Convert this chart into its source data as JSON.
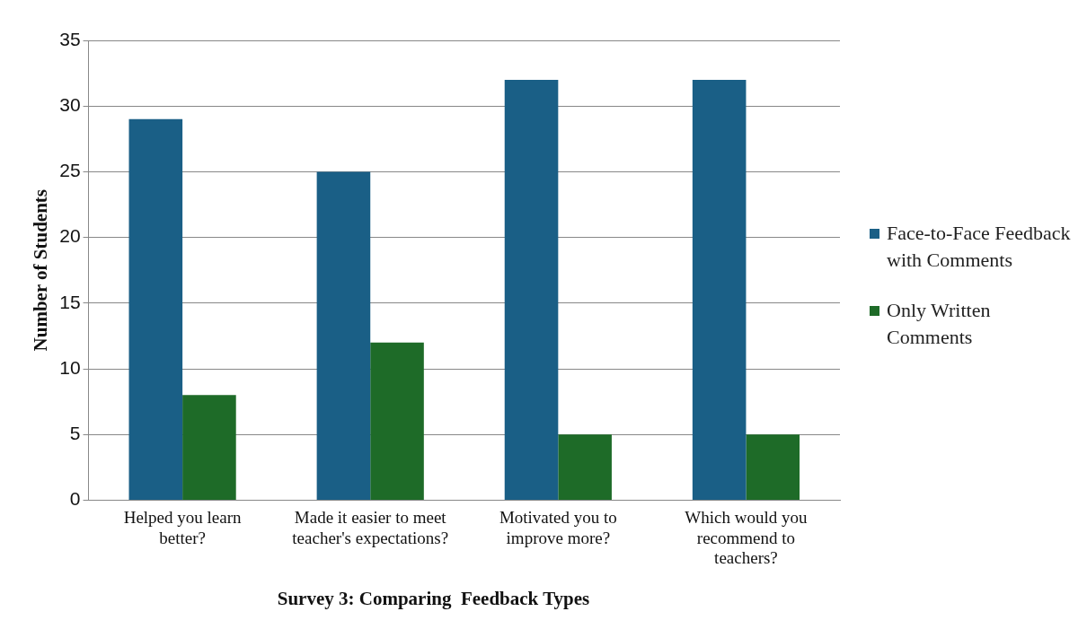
{
  "chart_data": {
    "type": "bar",
    "title": "Survey 3: Comparing  Feedback Types",
    "ylabel": "Number of Students",
    "categories": [
      "Helped you learn better?",
      "Made it easier to meet teacher's expectations?",
      "Motivated you to improve more?",
      "Which would you recommend to teachers?"
    ],
    "series": [
      {
        "name": "Face-to-Face Feedback with Comments",
        "color": "#1a5f86",
        "values": [
          29,
          25,
          32,
          32
        ]
      },
      {
        "name": "Only Written Comments",
        "color": "#1e6b28",
        "values": [
          8,
          12,
          5,
          5
        ]
      }
    ],
    "ylim": [
      0,
      35
    ],
    "yticks": [
      0,
      5,
      10,
      15,
      20,
      25,
      30,
      35
    ],
    "grid": "y",
    "legend": "right"
  }
}
